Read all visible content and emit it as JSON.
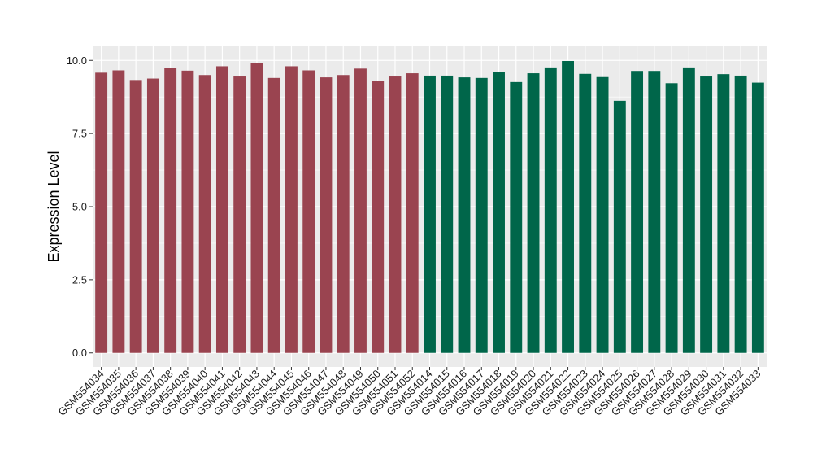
{
  "chart_data": {
    "type": "bar",
    "title": "",
    "xlabel": "",
    "ylabel": "Expression Level",
    "ylim": [
      0,
      10.0
    ],
    "yticks": [
      "0.0",
      "2.5",
      "5.0",
      "7.5",
      "10.0"
    ],
    "grid": true,
    "legend": "none",
    "categories": [
      "GSM554034",
      "GSM554035",
      "GSM554036",
      "GSM554037",
      "GSM554038",
      "GSM554039",
      "GSM554040",
      "GSM554041",
      "GSM554042",
      "GSM554043",
      "GSM554044",
      "GSM554045",
      "GSM554046",
      "GSM554047",
      "GSM554048",
      "GSM554049",
      "GSM554050",
      "GSM554051",
      "GSM554052",
      "GSM554014",
      "GSM554015",
      "GSM554016",
      "GSM554017",
      "GSM554018",
      "GSM554019",
      "GSM554020",
      "GSM554021",
      "GSM554022",
      "GSM554023",
      "GSM554024",
      "GSM554025",
      "GSM554026",
      "GSM554027",
      "GSM554028",
      "GSM554029",
      "GSM554030",
      "GSM554031",
      "GSM554032",
      "GSM554033"
    ],
    "values": [
      9.58,
      9.66,
      9.33,
      9.38,
      9.75,
      9.65,
      9.5,
      9.8,
      9.45,
      9.92,
      9.4,
      9.8,
      9.66,
      9.42,
      9.5,
      9.72,
      9.3,
      9.45,
      9.56,
      9.48,
      9.48,
      9.42,
      9.4,
      9.6,
      9.26,
      9.56,
      9.76,
      9.98,
      9.54,
      9.43,
      8.62,
      9.64,
      9.64,
      9.22,
      9.76,
      9.45,
      9.53,
      9.48,
      9.24
    ],
    "groups": [
      0,
      0,
      0,
      0,
      0,
      0,
      0,
      0,
      0,
      0,
      0,
      0,
      0,
      0,
      0,
      0,
      0,
      0,
      0,
      1,
      1,
      1,
      1,
      1,
      1,
      1,
      1,
      1,
      1,
      1,
      1,
      1,
      1,
      1,
      1,
      1,
      1,
      1,
      1
    ],
    "colors": [
      "#9A4450",
      "#00664A"
    ],
    "panel_background": "#EBEBEB",
    "grid_color": "#FFFFFF"
  }
}
